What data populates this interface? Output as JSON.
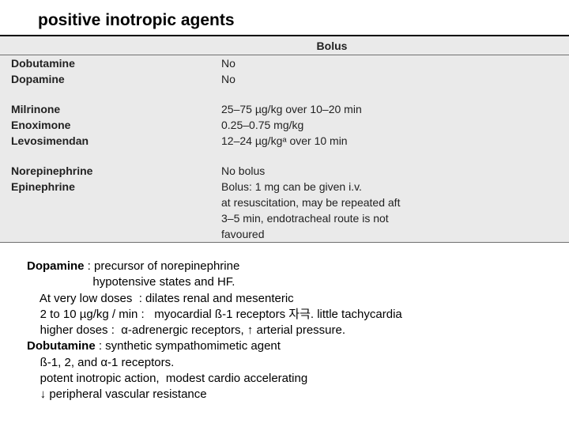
{
  "title": "positive inotropic agents",
  "table": {
    "header": "Bolus",
    "group1": [
      {
        "name": "Dobutamine",
        "bolus": "No"
      },
      {
        "name": "Dopamine",
        "bolus": "No"
      }
    ],
    "group2": [
      {
        "name": "Milrinone",
        "bolus": "25–75 µg/kg over 10–20 min"
      },
      {
        "name": "Enoximone",
        "bolus": "0.25–0.75 mg/kg"
      },
      {
        "name": "Levosimendan",
        "bolus": "12–24 µg/kgᵃ over 10 min"
      }
    ],
    "group3": [
      {
        "name": "Norepinephrine",
        "bolus": "No bolus"
      },
      {
        "name": "Epinephrine",
        "bolus": "Bolus: 1 mg can be given i.v."
      }
    ],
    "epi_extra": [
      "at resuscitation, may be repeated aft",
      "3–5 min, endotracheal route is not",
      "favoured"
    ]
  },
  "notes": {
    "l1a": "Dopamine",
    "l1b": " : precursor of norepinephrine",
    "l2": "                    hypotensive states and HF.",
    "l3": "    At very low doses  : dilates renal and mesenteric",
    "l4": "    2 to 10 µg/kg / min :   myocardial ß-1 receptors 자극. little tachycardia",
    "l5": "    higher doses :  α-adrenergic receptors, ↑ arterial pressure.",
    "l6a": "Dobutamine",
    "l6b": " : synthetic sympathomimetic agent",
    "l7": "    ß-1, 2, and α-1 receptors.",
    "l8": "    potent inotropic action,  modest cardio accelerating",
    "l9": "    ↓ peripheral vascular resistance"
  },
  "colors": {
    "table_bg": "#eaeaea",
    "text": "#000000",
    "rule": "#707070"
  }
}
